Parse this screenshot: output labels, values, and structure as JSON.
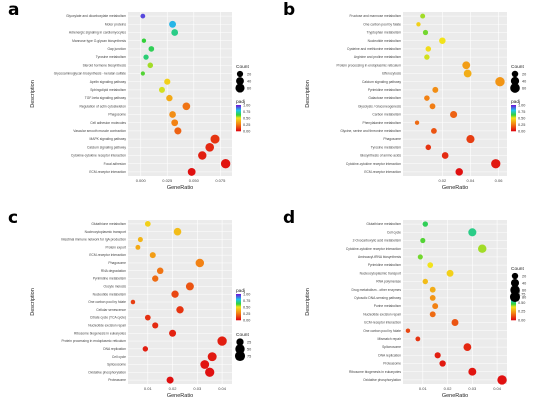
{
  "colors": {
    "panel_bg": "#ebebeb",
    "grid": "#ffffff",
    "gradient_high": "#6a1fd9",
    "gradient_mid_high": "#1ec6e8",
    "gradient_mid": "#33d13a",
    "gradient_mid_low": "#f2e31a",
    "gradient_low": "#e01010"
  },
  "chart_data": [
    {
      "panel": "a",
      "type": "scatter",
      "xlabel": "GeneRatio",
      "ylabel": "Description",
      "x_ticks": [
        "0.000",
        "0.025",
        "0.050",
        "0.075"
      ],
      "xlim": [
        -0.012,
        0.086
      ],
      "size_legend": {
        "title": "Count",
        "labels": [
          "20",
          "40",
          "60"
        ]
      },
      "color_legend": {
        "title": "padj",
        "labels": [
          "1.00",
          "0.75",
          "0.50",
          "0.25",
          "0.00"
        ]
      },
      "categories": [
        "Glyoxylate and dicarboxylate metabolism",
        "Motor proteins",
        "Adrenergic signaling in cardiomyocytes",
        "Mannose type O-glycan biosynthesis",
        "Gap junction",
        "Tyrosine metabolism",
        "Steroid hormone biosynthesis",
        "Glycosaminoglycan biosynthesis - keratan sulfate",
        "Apelin signaling pathway",
        "Sphingolipid metabolism",
        "TGF-beta signaling pathway",
        "Regulation of actin cytoskeleton",
        "Phagosome",
        "Cell adhesion molecules",
        "Vascular smooth muscle contraction",
        "MAPK signaling pathway",
        "Calcium signaling pathway",
        "Cytokine-cytokine receptor interaction",
        "Focal adhesion",
        "ECM-receptor interaction"
      ],
      "points": [
        {
          "x": 0.002,
          "count": 8,
          "padj": 0.95
        },
        {
          "x": 0.03,
          "count": 28,
          "padj": 0.82
        },
        {
          "x": 0.032,
          "count": 26,
          "padj": 0.7
        },
        {
          "x": 0.003,
          "count": 6,
          "padj": 0.62
        },
        {
          "x": 0.01,
          "count": 15,
          "padj": 0.65
        },
        {
          "x": 0.005,
          "count": 12,
          "padj": 0.68
        },
        {
          "x": 0.009,
          "count": 14,
          "padj": 0.55
        },
        {
          "x": 0.002,
          "count": 5,
          "padj": 0.6
        },
        {
          "x": 0.025,
          "count": 20,
          "padj": 0.45
        },
        {
          "x": 0.02,
          "count": 18,
          "padj": 0.52
        },
        {
          "x": 0.027,
          "count": 22,
          "padj": 0.35
        },
        {
          "x": 0.043,
          "count": 38,
          "padj": 0.22
        },
        {
          "x": 0.03,
          "count": 25,
          "padj": 0.28
        },
        {
          "x": 0.032,
          "count": 26,
          "padj": 0.25
        },
        {
          "x": 0.035,
          "count": 30,
          "padj": 0.18
        },
        {
          "x": 0.07,
          "count": 58,
          "padj": 0.08
        },
        {
          "x": 0.065,
          "count": 52,
          "padj": 0.05
        },
        {
          "x": 0.058,
          "count": 48,
          "padj": 0.03
        },
        {
          "x": 0.08,
          "count": 65,
          "padj": 0.01
        },
        {
          "x": 0.048,
          "count": 40,
          "padj": 0.0
        }
      ]
    },
    {
      "panel": "b",
      "type": "scatter",
      "xlabel": "GeneRatio",
      "ylabel": "Description",
      "x_ticks": [
        "0.02",
        "0.04",
        "0.06"
      ],
      "xlim": [
        -0.008,
        0.066
      ],
      "size_legend": {
        "title": "Count",
        "labels": [
          "20",
          "40",
          "60"
        ]
      },
      "color_legend": {
        "title": "padj",
        "labels": [
          "1.00",
          "0.75",
          "0.50",
          "0.25",
          "0.00"
        ]
      },
      "categories": [
        "Fructose and mannose metabolism",
        "One carbon pool by folate",
        "Tryptophan metabolism",
        "Nucleotide metabolism",
        "Cysteine and methionine metabolism",
        "Arginine and proline metabolism",
        "Protein processing in endoplasmic reticulum",
        "Efferocytosis",
        "Calcium signaling pathway",
        "Pyrimidine metabolism",
        "Galactose metabolism",
        "Glycolysis / Gluconeogenesis",
        "Carbon metabolism",
        "Phenylalanine metabolism",
        "Glycine, serine and threonine metabolism",
        "Phagosome",
        "Tyrosine metabolism",
        "Biosynthesis of amino acids",
        "Cytokine-cytokine receptor interaction",
        "ECM-receptor interaction"
      ],
      "points": [
        {
          "x": 0.006,
          "count": 8,
          "padj": 0.55
        },
        {
          "x": 0.003,
          "count": 5,
          "padj": 0.45
        },
        {
          "x": 0.008,
          "count": 10,
          "padj": 0.58
        },
        {
          "x": 0.02,
          "count": 20,
          "padj": 0.5
        },
        {
          "x": 0.01,
          "count": 12,
          "padj": 0.48
        },
        {
          "x": 0.009,
          "count": 11,
          "padj": 0.52
        },
        {
          "x": 0.037,
          "count": 34,
          "padj": 0.32
        },
        {
          "x": 0.038,
          "count": 34,
          "padj": 0.36
        },
        {
          "x": 0.061,
          "count": 56,
          "padj": 0.3
        },
        {
          "x": 0.015,
          "count": 15,
          "padj": 0.28
        },
        {
          "x": 0.009,
          "count": 12,
          "padj": 0.25
        },
        {
          "x": 0.013,
          "count": 14,
          "padj": 0.24
        },
        {
          "x": 0.028,
          "count": 26,
          "padj": 0.18
        },
        {
          "x": 0.002,
          "count": 5,
          "padj": 0.2
        },
        {
          "x": 0.014,
          "count": 14,
          "padj": 0.15
        },
        {
          "x": 0.04,
          "count": 38,
          "padj": 0.1
        },
        {
          "x": 0.01,
          "count": 12,
          "padj": 0.08
        },
        {
          "x": 0.022,
          "count": 22,
          "padj": 0.06
        },
        {
          "x": 0.058,
          "count": 54,
          "padj": 0.02
        },
        {
          "x": 0.032,
          "count": 30,
          "padj": 0.0
        }
      ]
    },
    {
      "panel": "c",
      "type": "scatter",
      "xlabel": "GeneRatio",
      "ylabel": "Description",
      "x_ticks": [
        "0.01",
        "0.02",
        "0.03",
        "0.04"
      ],
      "xlim": [
        0.002,
        0.044
      ],
      "size_legend": {
        "title": "Count",
        "labels": [
          "25",
          "50",
          "75"
        ]
      },
      "color_legend": {
        "title": "padj",
        "labels": [
          "1.00",
          "0.75",
          "0.50",
          "0.25",
          "0.00"
        ]
      },
      "categories": [
        "Glutathione metabolism",
        "Nucleocytoplasmic transport",
        "Intestinal immune network for IgA production",
        "Protein export",
        "ECM-receptor interaction",
        "Phagosome",
        "RNA degradation",
        "Pyrimidine metabolism",
        "Oocyte meiosis",
        "Nucleotide metabolism",
        "One carbon pool by folate",
        "Cellular senescence",
        "Citrate cycle (TCA cycle)",
        "Nucleotide excision repair",
        "Ribosome biogenesis in eukaryotes",
        "Protein processing in endoplasmic reticulum",
        "DNA replication",
        "Cell cycle",
        "Spliceosome",
        "Oxidative phosphorylation",
        "Proteasome"
      ],
      "points": [
        {
          "x": 0.01,
          "count": 12,
          "padj": 0.45
        },
        {
          "x": 0.022,
          "count": 28,
          "padj": 0.4
        },
        {
          "x": 0.007,
          "count": 8,
          "padj": 0.38
        },
        {
          "x": 0.006,
          "count": 7,
          "padj": 0.35
        },
        {
          "x": 0.012,
          "count": 14,
          "padj": 0.32
        },
        {
          "x": 0.031,
          "count": 38,
          "padj": 0.25
        },
        {
          "x": 0.015,
          "count": 18,
          "padj": 0.22
        },
        {
          "x": 0.013,
          "count": 16,
          "padj": 0.2
        },
        {
          "x": 0.027,
          "count": 32,
          "padj": 0.15
        },
        {
          "x": 0.021,
          "count": 25,
          "padj": 0.12
        },
        {
          "x": 0.004,
          "count": 5,
          "padj": 0.1
        },
        {
          "x": 0.023,
          "count": 26,
          "padj": 0.08
        },
        {
          "x": 0.01,
          "count": 12,
          "padj": 0.07
        },
        {
          "x": 0.013,
          "count": 15,
          "padj": 0.06
        },
        {
          "x": 0.02,
          "count": 22,
          "padj": 0.04
        },
        {
          "x": 0.04,
          "count": 50,
          "padj": 0.03
        },
        {
          "x": 0.009,
          "count": 10,
          "padj": 0.03
        },
        {
          "x": 0.036,
          "count": 44,
          "padj": 0.02
        },
        {
          "x": 0.033,
          "count": 42,
          "padj": 0.01
        },
        {
          "x": 0.035,
          "count": 48,
          "padj": 0.0
        },
        {
          "x": 0.019,
          "count": 22,
          "padj": 0.0
        }
      ]
    },
    {
      "panel": "d",
      "type": "scatter",
      "xlabel": "GeneRatio",
      "ylabel": "Description",
      "x_ticks": [
        "0.01",
        "0.02",
        "0.03",
        "0.04"
      ],
      "xlim": [
        0.002,
        0.044
      ],
      "size_legend": {
        "title": "Count",
        "labels": [
          "20",
          "40",
          "60",
          "80"
        ]
      },
      "color_legend": {
        "title": "padj",
        "labels": [
          "0.75",
          "0.50",
          "0.25",
          "0.00"
        ]
      },
      "categories": [
        "Glutathione metabolism",
        "Cell cycle",
        "2-Oxocarboxylic acid metabolism",
        "Cytokine-cytokine receptor interaction",
        "Aminoacyl-tRNA biosynthesis",
        "Pyrimidine metabolism",
        "Nucleocytoplasmic transport",
        "RNA polymerase",
        "Drug metabolism - other enzymes",
        "Cytosolic DNA-sensing pathway",
        "Purine metabolism",
        "Nucleotide excision repair",
        "ECM-receptor interaction",
        "One carbon pool by folate",
        "Mismatch repair",
        "Spliceosome",
        "DNA replication",
        "Proteasome",
        "Ribosome biogenesis in eukaryotes",
        "Oxidative phosphorylation"
      ],
      "points": [
        {
          "x": 0.011,
          "count": 12,
          "padj": 0.65
        },
        {
          "x": 0.03,
          "count": 40,
          "padj": 0.7
        },
        {
          "x": 0.01,
          "count": 10,
          "padj": 0.6
        },
        {
          "x": 0.034,
          "count": 45,
          "padj": 0.55
        },
        {
          "x": 0.009,
          "count": 10,
          "padj": 0.58
        },
        {
          "x": 0.013,
          "count": 14,
          "padj": 0.5
        },
        {
          "x": 0.021,
          "count": 26,
          "padj": 0.45
        },
        {
          "x": 0.011,
          "count": 12,
          "padj": 0.4
        },
        {
          "x": 0.014,
          "count": 15,
          "padj": 0.36
        },
        {
          "x": 0.014,
          "count": 15,
          "padj": 0.3
        },
        {
          "x": 0.015,
          "count": 16,
          "padj": 0.25
        },
        {
          "x": 0.014,
          "count": 16,
          "padj": 0.2
        },
        {
          "x": 0.023,
          "count": 26,
          "padj": 0.15
        },
        {
          "x": 0.004,
          "count": 6,
          "padj": 0.12
        },
        {
          "x": 0.008,
          "count": 8,
          "padj": 0.08
        },
        {
          "x": 0.028,
          "count": 36,
          "padj": 0.05
        },
        {
          "x": 0.016,
          "count": 18,
          "padj": 0.03
        },
        {
          "x": 0.018,
          "count": 20,
          "padj": 0.02
        },
        {
          "x": 0.03,
          "count": 38,
          "padj": 0.01
        },
        {
          "x": 0.042,
          "count": 60,
          "padj": 0.0
        }
      ]
    }
  ]
}
